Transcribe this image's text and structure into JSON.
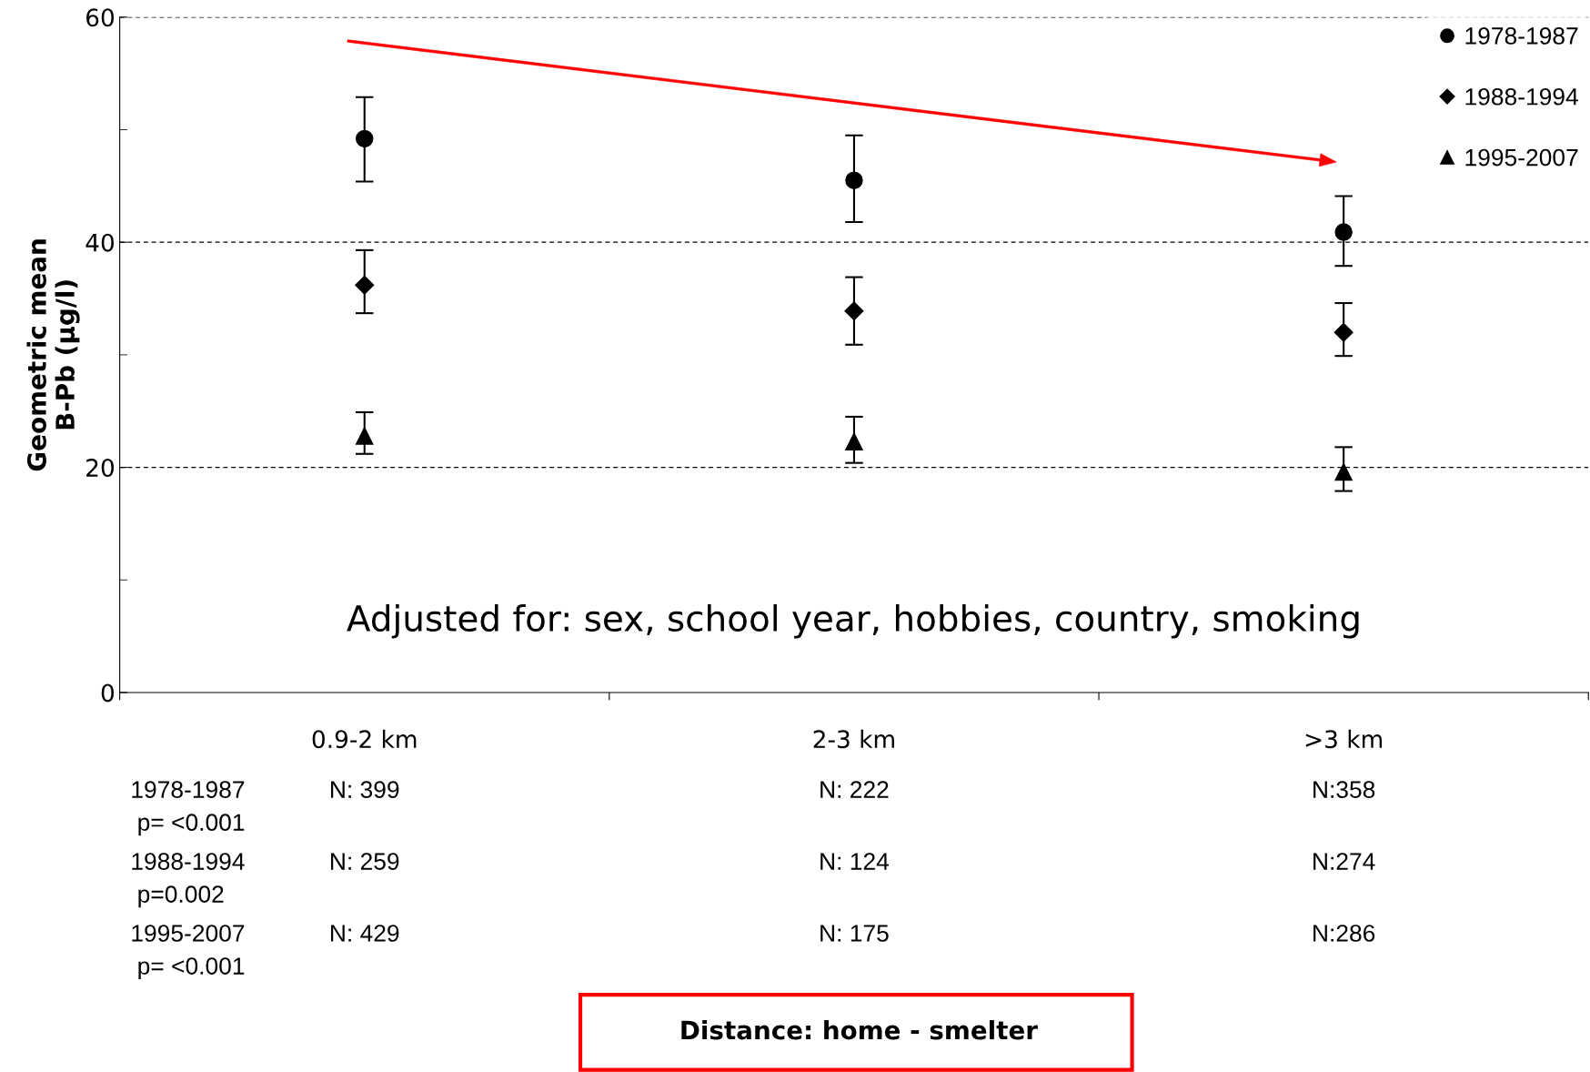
{
  "chart_data": {
    "type": "scatter",
    "ylabel": "Geometric mean\nB-Pb (µg/l)",
    "categories": [
      "0.9-2 km",
      "2-3 km",
      ">3 km"
    ],
    "series": [
      {
        "name": "1978-1987",
        "color": "#000000",
        "marker": "circle",
        "values": [
          49.2,
          45.5,
          40.9
        ],
        "errors": [
          [
            45.4,
            52.9
          ],
          [
            41.8,
            49.5
          ],
          [
            37.9,
            44.1
          ]
        ]
      },
      {
        "name": "1988-1994",
        "color": "#000000",
        "marker": "diamond",
        "values": [
          36.2,
          33.9,
          32.0
        ],
        "errors": [
          [
            33.7,
            39.3
          ],
          [
            30.9,
            36.9
          ],
          [
            29.9,
            34.6
          ]
        ]
      },
      {
        "name": "1995-2007",
        "color": "#000000",
        "marker": "triangle",
        "values": [
          22.8,
          22.3,
          19.6
        ],
        "errors": [
          [
            21.2,
            24.9
          ],
          [
            20.4,
            24.5
          ],
          [
            17.9,
            21.8
          ]
        ]
      }
    ],
    "ylim": [
      0,
      60
    ],
    "yticks": [
      0,
      {
        "value": 10,
        "label": null
      },
      20,
      {
        "value": 30,
        "label": null
      },
      40,
      {
        "value": 50,
        "label": null
      },
      60
    ],
    "grid": "y",
    "legend": "top right",
    "annotations": [
      "Adjusted for: sex, school year, hobbies, country, smoking",
      "1978-1987\n p= <0.001",
      "N: 399",
      "N: 222",
      "N:358",
      "1988-1994\n p=0.002",
      "N: 259",
      "N: 124",
      "N:274",
      "1995-2007\n p= <0.001",
      "N: 429",
      "N: 175",
      "N:286",
      "Distance: home - smelter"
    ]
  }
}
